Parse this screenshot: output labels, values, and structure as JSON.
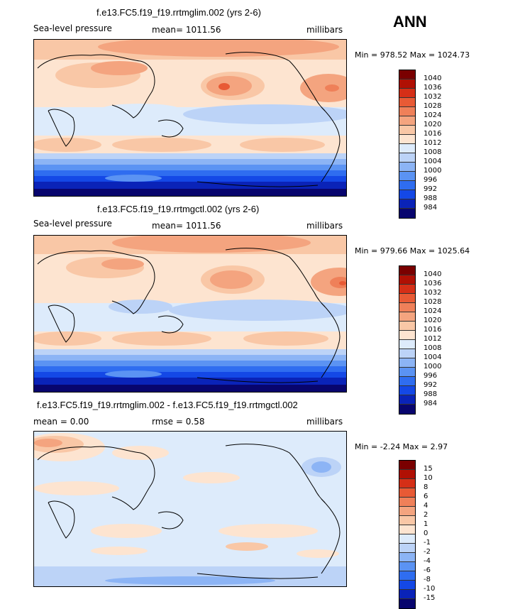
{
  "season": "ANN",
  "colors": {
    "abs_scale": [
      "#08056e",
      "#0a23b8",
      "#1448e6",
      "#2f6df0",
      "#5b93f3",
      "#8cb4f5",
      "#bcd3f7",
      "#ddebfb",
      "#fde4d0",
      "#f9c7a6",
      "#f4a47f",
      "#ef8059",
      "#e85a35",
      "#d52f17",
      "#b01004",
      "#7a0000"
    ],
    "diff_scale": [
      "#08056e",
      "#0a23b8",
      "#1448e6",
      "#2f6df0",
      "#5b93f3",
      "#8cb4f5",
      "#bcd3f7",
      "#ddebfb",
      "#fde4d0",
      "#f9c7a6",
      "#f4a47f",
      "#ef8059",
      "#e85a35",
      "#d52f17",
      "#b01004",
      "#7a0000"
    ]
  },
  "panels": [
    {
      "title": "f.e13.FC5.f19_f19.rrtmglim.002 (yrs 2-6)",
      "field": "Sea-level pressure",
      "mean": "mean= 1011.56",
      "units": "millibars",
      "minmax": "Min = 978.52 Max = 1024.73",
      "colorbar_labels": [
        "1040",
        "1036",
        "1032",
        "1028",
        "1024",
        "1020",
        "1016",
        "1012",
        "1008",
        "1004",
        "1000",
        "996",
        "992",
        "988",
        "984"
      ]
    },
    {
      "title": "f.e13.FC5.f19_f19.rrtmgctl.002 (yrs 2-6)",
      "field": "Sea-level pressure",
      "mean": "mean= 1011.56",
      "units": "millibars",
      "minmax": "Min = 979.66 Max = 1025.64",
      "colorbar_labels": [
        "1040",
        "1036",
        "1032",
        "1028",
        "1024",
        "1020",
        "1016",
        "1012",
        "1008",
        "1004",
        "1000",
        "996",
        "992",
        "988",
        "984"
      ]
    },
    {
      "title": "f.e13.FC5.f19_f19.rrtmglim.002 - f.e13.FC5.f19_f19.rrtmgctl.002",
      "field": "mean =    0.00",
      "mean": "rmse =    0.58",
      "units": "millibars",
      "minmax": "Min =  -2.24 Max =    2.97",
      "colorbar_labels": [
        "15",
        "10",
        "8",
        "6",
        "4",
        "2",
        "1",
        "0",
        "-1",
        "-2",
        "-4",
        "-6",
        "-8",
        "-10",
        "-15"
      ]
    }
  ]
}
